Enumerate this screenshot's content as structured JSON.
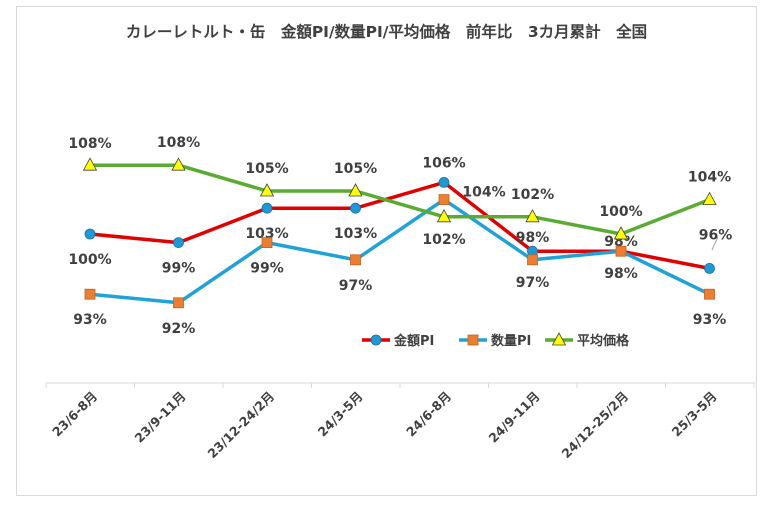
{
  "chart_data": {
    "type": "line",
    "title": "カレーレトルト・缶　金額PI/数量PI/平均価格　前年比　3カ月累計　全国",
    "categories": [
      "23/6-8月",
      "23/9-11月",
      "23/12-24/2月",
      "24/3-5月",
      "24/6-8月",
      "24/9-11月",
      "24/12-25/2月",
      "25/3-5月"
    ],
    "series": [
      {
        "name": "金額PI",
        "color": "#e00000",
        "marker": "circle",
        "marker_color": "#1a9ad6",
        "values": [
          100,
          99,
          103,
          103,
          106,
          98,
          98,
          96
        ],
        "labels": [
          "100%",
          "99%",
          "103%",
          "103%",
          "106%",
          "98%",
          "98%",
          "96%"
        ]
      },
      {
        "name": "数量PI",
        "color": "#1ea2d8",
        "marker": "square",
        "marker_color": "#ed7d31",
        "values": [
          93,
          92,
          99,
          97,
          104,
          97,
          98,
          93
        ],
        "labels": [
          "93%",
          "92%",
          "99%",
          "97%",
          "104%",
          "97%",
          "98%",
          "93%"
        ]
      },
      {
        "name": "平均価格",
        "color": "#5aab32",
        "marker": "triangle",
        "marker_color": "#ffff00",
        "values": [
          108,
          108,
          105,
          105,
          102,
          102,
          100,
          104
        ],
        "labels": [
          "108%",
          "108%",
          "105%",
          "105%",
          "102%",
          "102%",
          "100%",
          "104%"
        ]
      }
    ],
    "legend_position": "inside-bottom-right",
    "grid": false
  }
}
